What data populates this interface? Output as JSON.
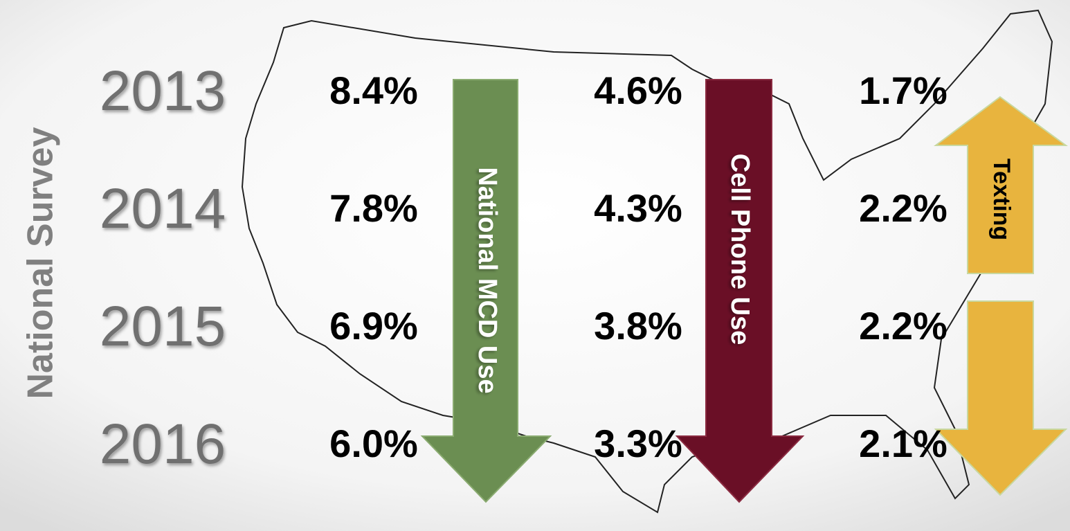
{
  "side_label": "National Survey",
  "arrows": [
    "National MCD Use",
    "Cell Phone Use",
    "Texting"
  ],
  "rows": [
    {
      "year": "2013",
      "values": [
        "8.4%",
        "4.6%",
        "1.7%"
      ]
    },
    {
      "year": "2014",
      "values": [
        "7.8%",
        "4.3%",
        "2.2%"
      ]
    },
    {
      "year": "2015",
      "values": [
        "6.9%",
        "3.8%",
        "2.2%"
      ]
    },
    {
      "year": "2016",
      "values": [
        "6.0%",
        "3.3%",
        "2.1%"
      ]
    }
  ]
}
